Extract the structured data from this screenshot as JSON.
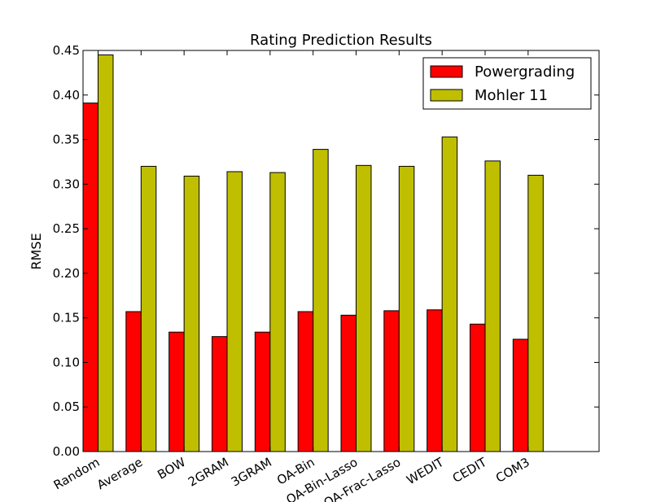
{
  "chart_data": {
    "type": "bar",
    "title": "Rating Prediction Results",
    "xlabel": "",
    "ylabel": "RMSE",
    "ylim": [
      0,
      0.45
    ],
    "yticks": [
      "0.00",
      "0.05",
      "0.10",
      "0.15",
      "0.20",
      "0.25",
      "0.30",
      "0.35",
      "0.40",
      "0.45"
    ],
    "categories": [
      "Random",
      "Average",
      "BOW",
      "2GRAM",
      "3GRAM",
      "OA-Bin",
      "OA-Bin-Lasso",
      "OA-Frac-Lasso",
      "WEDIT",
      "CEDIT",
      "COM3"
    ],
    "series": [
      {
        "name": "Powergrading",
        "color": "#ff0000",
        "values": [
          0.391,
          0.157,
          0.134,
          0.129,
          0.134,
          0.157,
          0.153,
          0.158,
          0.159,
          0.143,
          0.126
        ]
      },
      {
        "name": "Mohler 11",
        "color": "#bfbf00",
        "values": [
          0.445,
          0.32,
          0.309,
          0.314,
          0.313,
          0.339,
          0.321,
          0.32,
          0.353,
          0.326,
          0.31
        ]
      }
    ],
    "legend_position": "top-right",
    "grid": false
  }
}
